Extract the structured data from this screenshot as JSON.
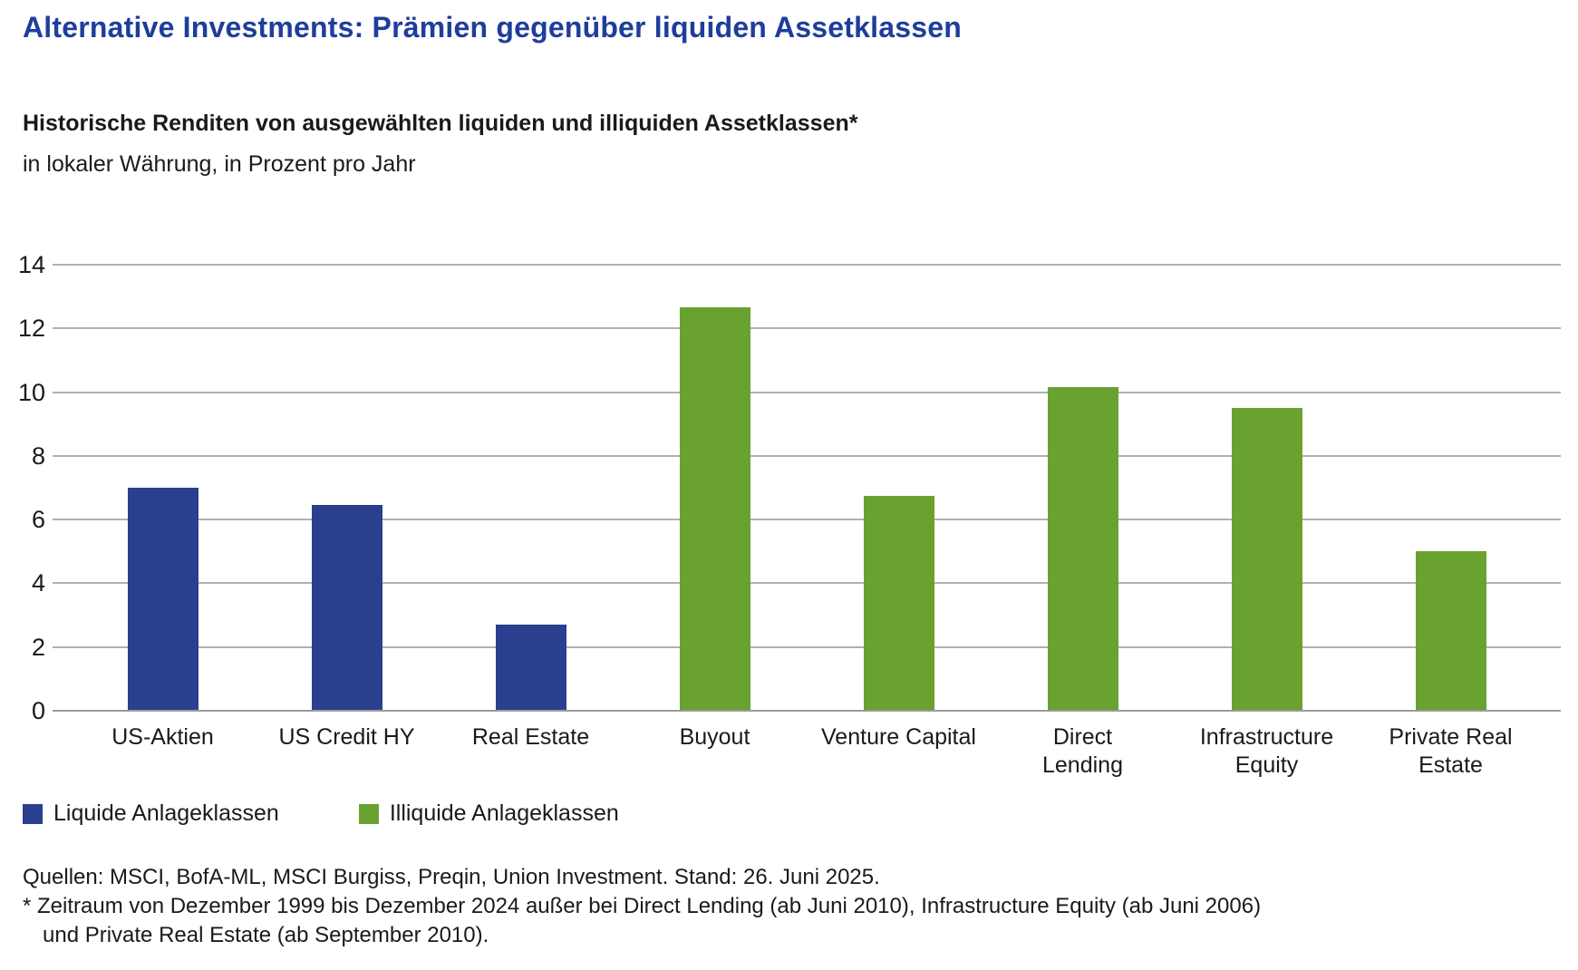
{
  "page": {
    "title": "Alternative Investments: Prämien gegenüber liquiden Assetklassen",
    "subtitle_bold": "Historische Renditen von ausgewählten liquiden und illiquiden Assetklassen*",
    "subtitle_unit": "in lokaler Währung, in Prozent pro Jahr"
  },
  "chart_data": {
    "type": "bar",
    "title": "Historische Renditen von ausgewählten liquiden und illiquiden Assetklassen*",
    "ylabel": "in lokaler Währung, in Prozent pro Jahr",
    "categories": [
      "US-Aktien",
      "US Credit HY",
      "Real Estate",
      "Buyout",
      "Venture Capital",
      "Direct Lending",
      "Infrastructure Equity",
      "Private Real Estate"
    ],
    "category_label_lines": [
      [
        "US-Aktien"
      ],
      [
        "US Credit HY"
      ],
      [
        "Real Estate"
      ],
      [
        "Buyout"
      ],
      [
        "Venture Capital"
      ],
      [
        "Direct",
        "Lending"
      ],
      [
        "Infrastructure",
        "Equity"
      ],
      [
        "Private Real",
        "Estate"
      ]
    ],
    "values": [
      7.0,
      6.45,
      2.7,
      12.65,
      6.75,
      10.15,
      9.5,
      5.0
    ],
    "groups": [
      "liquide",
      "liquide",
      "liquide",
      "illiquide",
      "illiquide",
      "illiquide",
      "illiquide",
      "illiquide"
    ],
    "group_colors": {
      "liquide": "#2a3f8d",
      "illiquide": "#69a231"
    },
    "ylim": [
      0,
      14
    ],
    "yticks": [
      0,
      2,
      4,
      6,
      8,
      10,
      12,
      14
    ],
    "grid": true,
    "legend_position": "bottom-left"
  },
  "legend": {
    "items": [
      {
        "label": "Liquide Anlageklassen",
        "group": "liquide",
        "color": "#2a3f8d"
      },
      {
        "label": "Illiquide Anlageklassen",
        "group": "illiquide",
        "color": "#69a231"
      }
    ]
  },
  "footer": {
    "sources": "Quellen: MSCI, BofA-ML, MSCI Burgiss, Preqin, Union Investment. Stand: 26. Juni 2025.",
    "footnote_line1": "* Zeitraum von Dezember 1999 bis Dezember 2024 außer bei Direct Lending (ab Juni 2010), Infrastructure Equity (ab Juni 2006)",
    "footnote_line2": "und Private Real Estate (ab September 2010)."
  },
  "colors": {
    "title": "#1f3d9b",
    "gridline": "#b0b0b0",
    "axis_baseline": "#9b9b9b",
    "text": "#1a1a1a"
  }
}
